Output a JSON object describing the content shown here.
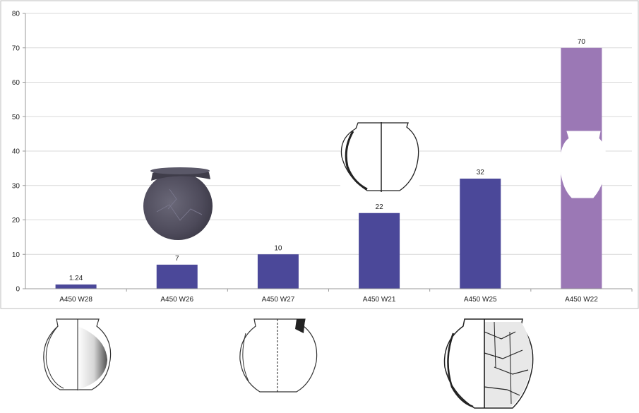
{
  "chart_data": {
    "type": "bar",
    "categories": [
      "A450 W28",
      "A450 W26",
      "A450 W27",
      "A450 W21",
      "A450 W25",
      "A450 W22"
    ],
    "values": [
      1.24,
      7,
      10,
      22,
      32,
      70
    ],
    "data_labels": [
      "1.24",
      "7",
      "10",
      "22",
      "32",
      "70"
    ],
    "ylim": [
      0,
      80
    ],
    "yticks": [
      0,
      10,
      20,
      30,
      40,
      50,
      60,
      70,
      80
    ],
    "title": "",
    "xlabel": "",
    "ylabel": "",
    "grid": true,
    "colors": {
      "bar": "#4b4899",
      "highlight_bar": "#9b78b5",
      "gridline": "#d9d9d9",
      "axis": "#9a9a9a"
    },
    "highlight_index": 5
  },
  "illustrations": [
    "pottery-photo-vessel",
    "pottery-drawing-vessel",
    "pottery-outline-vessel",
    "pottery-drawing-vessel",
    "pottery-drawing-vessel",
    "pottery-drawing-vessel"
  ]
}
